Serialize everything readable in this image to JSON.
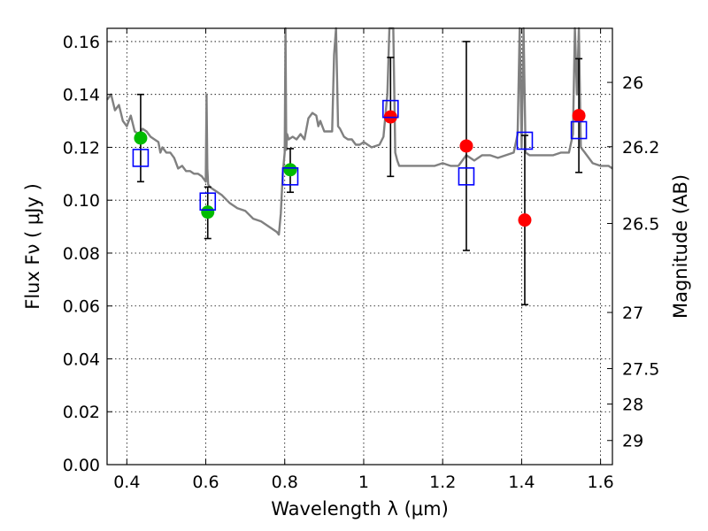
{
  "chart_data": {
    "type": "scatter",
    "title": "",
    "xlabel": "Wavelength  λ (μm)",
    "ylabel": "Flux  Fν  ( μJy )",
    "y2label": "Magnitude (AB)",
    "xlim": [
      0.35,
      1.63
    ],
    "ylim": [
      0.0,
      0.165
    ],
    "grid": true,
    "x_ticks": [
      0.4,
      0.6,
      0.8,
      1.0,
      1.2,
      1.4,
      1.6
    ],
    "x_tick_labels": [
      "0.4",
      "0.6",
      "0.8",
      "1",
      "1.2",
      "1.4",
      "1.6"
    ],
    "y_ticks": [
      0.0,
      0.02,
      0.04,
      0.06,
      0.08,
      0.1,
      0.12,
      0.14,
      0.16
    ],
    "y_tick_labels": [
      "0.00",
      "0.02",
      "0.04",
      "0.06",
      "0.08",
      "0.10",
      "0.12",
      "0.14",
      "0.16"
    ],
    "y2_ticks": [
      26,
      26.2,
      26.5,
      27,
      27.5,
      28,
      29
    ],
    "y2_tick_labels": [
      "26",
      "26.2",
      "26.5",
      "27",
      "27.5",
      "28",
      "29"
    ],
    "colors": {
      "green": "#00bb00",
      "red": "#ff0000",
      "model_box": "#0000ff",
      "sed": "#808080",
      "errorbar": "#000000"
    },
    "series": [
      {
        "marker": "circle",
        "color": "#00bb00",
        "points": [
          {
            "x": 0.435,
            "y": 0.1235,
            "yerr_low": 0.107,
            "yerr_high": 0.14
          },
          {
            "x": 0.605,
            "y": 0.0955,
            "yerr_low": 0.0855,
            "yerr_high": 0.105
          },
          {
            "x": 0.814,
            "y": 0.1115,
            "yerr_low": 0.103,
            "yerr_high": 0.1195
          }
        ]
      },
      {
        "marker": "circle",
        "color": "#ff0000",
        "points": [
          {
            "x": 1.068,
            "y": 0.1315,
            "yerr_low": 0.109,
            "yerr_high": 0.154
          },
          {
            "x": 1.26,
            "y": 0.1205,
            "yerr_low": 0.081,
            "yerr_high": 0.16
          },
          {
            "x": 1.408,
            "y": 0.0925,
            "yerr_low": 0.0605,
            "yerr_high": 0.1245
          },
          {
            "x": 1.545,
            "y": 0.132,
            "yerr_low": 0.1105,
            "yerr_high": 0.1535
          }
        ]
      },
      {
        "marker": "open-square",
        "color": "#0000ff",
        "points": [
          {
            "x": 0.435,
            "y": 0.116
          },
          {
            "x": 0.605,
            "y": 0.0995
          },
          {
            "x": 0.814,
            "y": 0.109
          },
          {
            "x": 1.068,
            "y": 0.1345
          },
          {
            "x": 1.26,
            "y": 0.109
          },
          {
            "x": 1.408,
            "y": 0.1225
          },
          {
            "x": 1.545,
            "y": 0.1265
          }
        ]
      },
      {
        "type": "line",
        "color": "#808080",
        "x": [
          0.35,
          0.36,
          0.37,
          0.38,
          0.39,
          0.4,
          0.41,
          0.42,
          0.43,
          0.44,
          0.45,
          0.46,
          0.47,
          0.48,
          0.485,
          0.49,
          0.5,
          0.51,
          0.52,
          0.53,
          0.54,
          0.55,
          0.56,
          0.57,
          0.58,
          0.59,
          0.6,
          0.602,
          0.604,
          0.606,
          0.61,
          0.62,
          0.64,
          0.66,
          0.68,
          0.7,
          0.72,
          0.74,
          0.76,
          0.78,
          0.785,
          0.79,
          0.795,
          0.8,
          0.802,
          0.804,
          0.806,
          0.81,
          0.82,
          0.83,
          0.84,
          0.85,
          0.86,
          0.87,
          0.88,
          0.885,
          0.89,
          0.9,
          0.91,
          0.92,
          0.925,
          0.93,
          0.935,
          0.94,
          0.95,
          0.96,
          0.97,
          0.98,
          0.99,
          1.0,
          1.02,
          1.04,
          1.05,
          1.06,
          1.065,
          1.07,
          1.075,
          1.08,
          1.085,
          1.09,
          1.1,
          1.12,
          1.14,
          1.16,
          1.18,
          1.2,
          1.22,
          1.24,
          1.26,
          1.28,
          1.3,
          1.32,
          1.34,
          1.36,
          1.38,
          1.39,
          1.395,
          1.4,
          1.405,
          1.41,
          1.42,
          1.44,
          1.46,
          1.48,
          1.5,
          1.52,
          1.53,
          1.535,
          1.54,
          1.545,
          1.55,
          1.56,
          1.58,
          1.6,
          1.62,
          1.63
        ],
        "y": [
          0.138,
          0.14,
          0.134,
          0.136,
          0.13,
          0.128,
          0.132,
          0.126,
          0.125,
          0.127,
          0.126,
          0.124,
          0.123,
          0.122,
          0.118,
          0.12,
          0.118,
          0.118,
          0.116,
          0.112,
          0.113,
          0.111,
          0.111,
          0.11,
          0.11,
          0.109,
          0.107,
          0.14,
          0.112,
          0.106,
          0.105,
          0.104,
          0.102,
          0.099,
          0.097,
          0.096,
          0.093,
          0.092,
          0.09,
          0.088,
          0.087,
          0.095,
          0.11,
          0.118,
          0.165,
          0.119,
          0.125,
          0.123,
          0.124,
          0.123,
          0.125,
          0.123,
          0.131,
          0.133,
          0.132,
          0.128,
          0.13,
          0.126,
          0.126,
          0.126,
          0.155,
          0.165,
          0.128,
          0.127,
          0.124,
          0.123,
          0.123,
          0.121,
          0.121,
          0.122,
          0.12,
          0.121,
          0.124,
          0.14,
          0.165,
          0.165,
          0.165,
          0.118,
          0.115,
          0.113,
          0.113,
          0.113,
          0.113,
          0.113,
          0.113,
          0.114,
          0.113,
          0.113,
          0.117,
          0.115,
          0.117,
          0.117,
          0.116,
          0.117,
          0.118,
          0.125,
          0.165,
          0.12,
          0.165,
          0.118,
          0.117,
          0.117,
          0.117,
          0.117,
          0.118,
          0.118,
          0.125,
          0.165,
          0.14,
          0.165,
          0.12,
          0.118,
          0.114,
          0.113,
          0.113,
          0.112
        ]
      }
    ]
  }
}
